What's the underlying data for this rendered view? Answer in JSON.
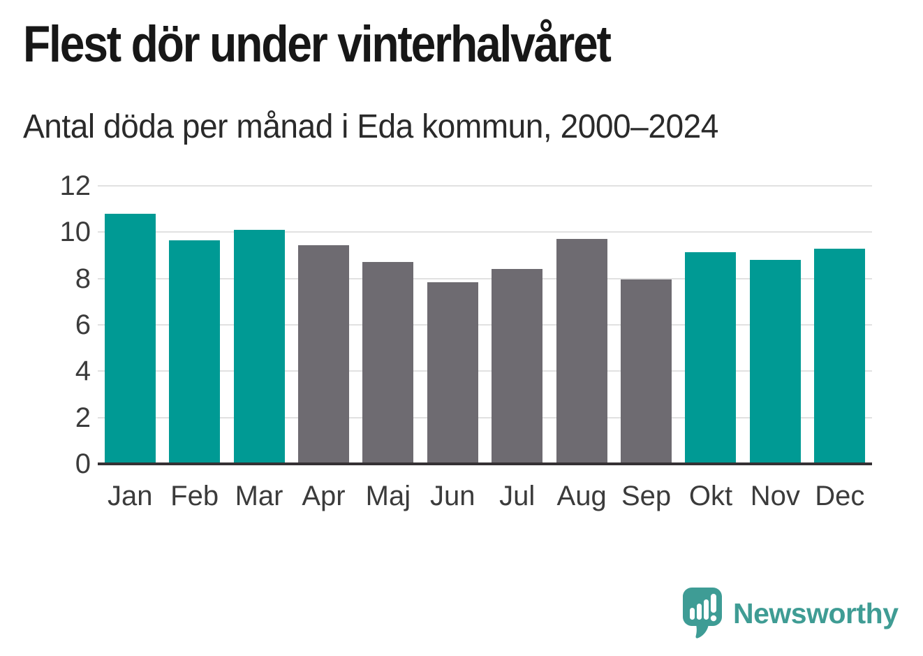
{
  "chart_data": {
    "type": "bar",
    "title": "Flest dör under vinterhalvåret",
    "subtitle": "Antal döda per månad i Eda kommun, 2000–2024",
    "categories": [
      "Jan",
      "Feb",
      "Mar",
      "Apr",
      "Maj",
      "Jun",
      "Jul",
      "Aug",
      "Sep",
      "Okt",
      "Nov",
      "Dec"
    ],
    "values": [
      10.8,
      9.65,
      10.1,
      9.45,
      8.7,
      7.85,
      8.4,
      9.7,
      7.95,
      9.15,
      8.8,
      9.3
    ],
    "highlighted": [
      true,
      true,
      true,
      false,
      false,
      false,
      false,
      false,
      false,
      true,
      true,
      true
    ],
    "ylim": [
      0,
      12
    ],
    "ytick_step": 2,
    "yticks": [
      0,
      2,
      4,
      6,
      8,
      10,
      12
    ],
    "grid": true,
    "legend": "none",
    "colors": {
      "highlight": "#009A94",
      "muted": "#6E6B71",
      "gridline": "#e1e1e1",
      "axis": "#353134",
      "tick_label": "#3b3b3b"
    }
  },
  "footer": {
    "brand": "Newsworthy",
    "brand_color": "#3F9C94",
    "icon_color": "#3E9C95"
  }
}
